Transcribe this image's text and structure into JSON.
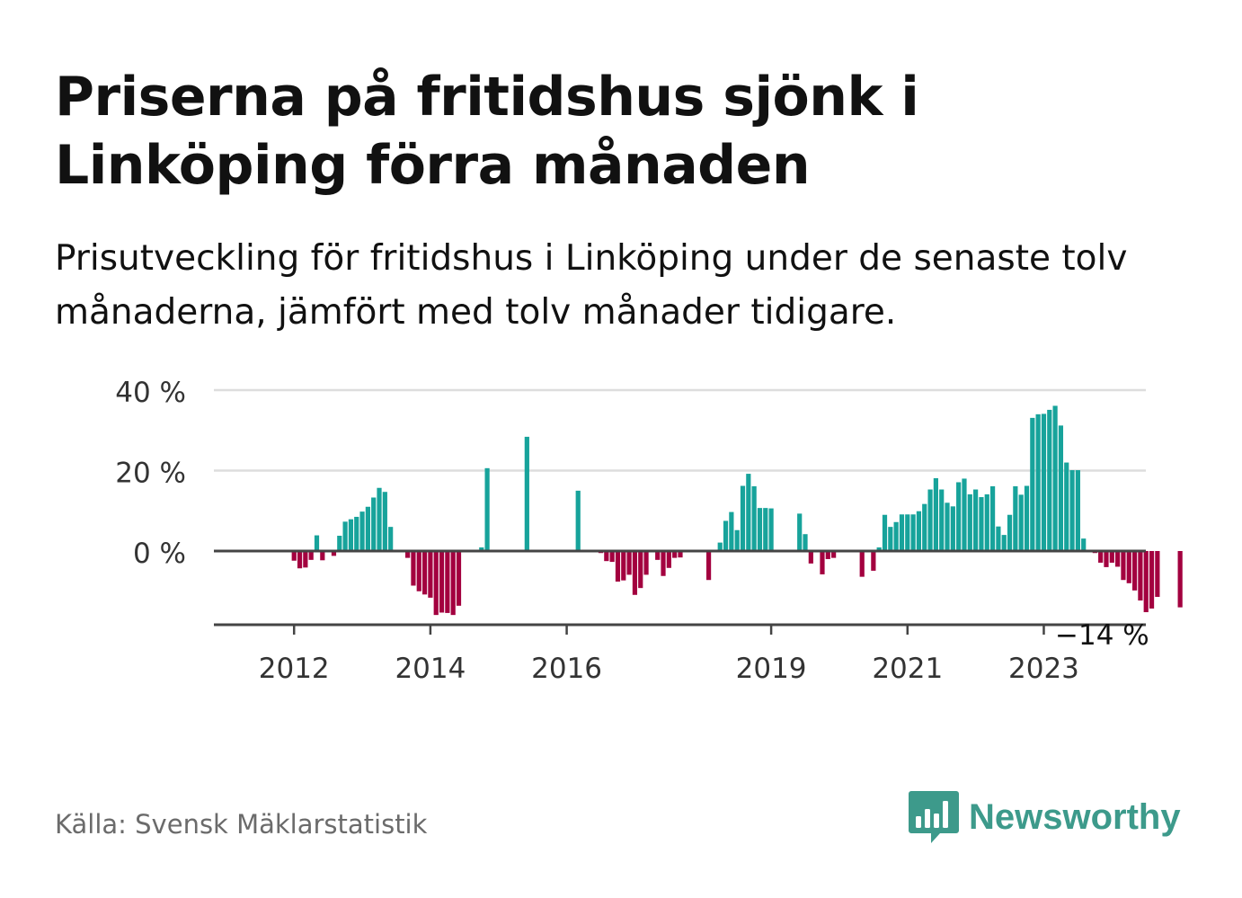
{
  "title": "Priserna på fritidshus sjönk i Linköping förra månaden",
  "subtitle": "Prisutveckling för fritidshus i Linköping under de senaste tolv månaderna, jämfört med tolv månader tidigare.",
  "source": "Källa: Svensk Mäklarstatistik",
  "brand": {
    "name": "Newsworthy",
    "logo_icon": "newsworthy-chart-bubble-icon",
    "color": "#3d9a8b"
  },
  "colors": {
    "positive": "#17a39b",
    "negative": "#a3003f",
    "axis": "#444444",
    "grid": "#dddddd",
    "text": "#111111",
    "muted": "#6b6b6b"
  },
  "chart_data": {
    "type": "bar",
    "title": "",
    "xlabel": "",
    "ylabel": "",
    "x_start": "2011-07",
    "x_end": "2023-11",
    "ylim": [
      -18,
      40
    ],
    "y_ticks": [
      "40 %",
      "20 %",
      "0 %"
    ],
    "y_tick_values": [
      40,
      20,
      0
    ],
    "x_ticks": [
      "2012",
      "2014",
      "2016",
      "2019",
      "2021",
      "2023"
    ],
    "x_tick_dates": [
      "2012-01",
      "2014-01",
      "2016-01",
      "2019-01",
      "2021-01",
      "2023-01"
    ],
    "grid": true,
    "last_value_label": "−14 %",
    "series": [
      {
        "unit": "%",
        "values": [
          null,
          null,
          null,
          null,
          null,
          null,
          -2.4,
          -4.3,
          -4.1,
          -2.2,
          3.9,
          -2.3,
          null,
          -1.2,
          3.8,
          7.3,
          7.9,
          8.5,
          9.8,
          11.0,
          13.3,
          15.7,
          14.7,
          6.0,
          null,
          null,
          -1.7,
          -8.6,
          -10.0,
          -10.8,
          -11.6,
          -15.9,
          -15.3,
          -15.4,
          -15.9,
          -13.6,
          null,
          null,
          null,
          0.9,
          20.6,
          null,
          null,
          null,
          null,
          null,
          null,
          28.4,
          null,
          null,
          null,
          null,
          null,
          null,
          null,
          null,
          15.0,
          null,
          null,
          null,
          -0.5,
          -2.5,
          -2.7,
          -7.6,
          -7.3,
          -5.9,
          -10.9,
          -9.2,
          -5.9,
          null,
          -2.2,
          -6.2,
          -4.2,
          -1.7,
          -1.6,
          null,
          null,
          null,
          null,
          -7.2,
          null,
          2.1,
          7.5,
          9.7,
          5.2,
          16.2,
          19.2,
          16.1,
          10.7,
          10.7,
          10.6,
          null,
          null,
          null,
          null,
          9.3,
          4.2,
          -3.1,
          null,
          -5.8,
          -2.0,
          -1.7,
          null,
          null,
          null,
          null,
          -6.4,
          null,
          -4.9,
          0.9,
          9.0,
          6.0,
          7.2,
          9.1,
          9.1,
          9.1,
          9.9,
          11.7,
          15.3,
          18.1,
          15.3,
          12.0,
          11.1,
          17.1,
          18.0,
          14.1,
          15.3,
          13.4,
          14.1,
          16.1,
          6.1,
          4.0,
          9.0,
          16.1,
          14.0,
          16.2,
          33.1,
          34.0,
          34.1,
          35.1,
          36.1,
          31.2,
          22.0,
          20.1,
          20.1,
          3.1,
          null,
          -0.5,
          -2.9,
          -4.0,
          -2.9,
          -3.9,
          -7.2,
          -8.0,
          -9.8,
          -12.3,
          -15.2,
          -14.3,
          -11.4,
          null,
          null,
          null,
          -14.0
        ]
      }
    ]
  }
}
